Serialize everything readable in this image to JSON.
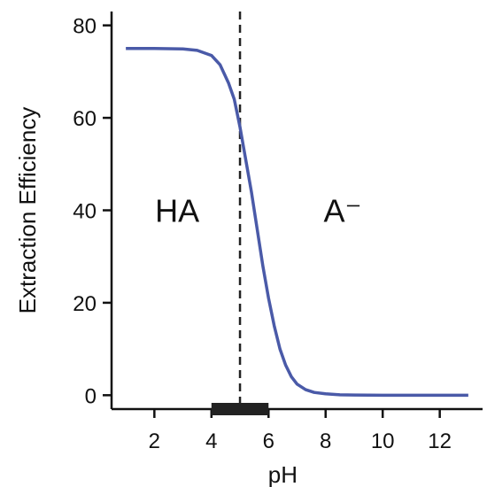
{
  "chart_data": {
    "type": "line",
    "title": "",
    "xlabel": "pH",
    "ylabel": "Extraction Efficiency",
    "xlim": [
      0.5,
      13.5
    ],
    "ylim": [
      -3,
      83
    ],
    "x_ticks": [
      2,
      4,
      6,
      8,
      10,
      12
    ],
    "y_ticks": [
      0,
      20,
      40,
      60,
      80
    ],
    "grid": false,
    "series": [
      {
        "color": "#4a5aa8",
        "x": [
          1,
          2,
          3,
          3.5,
          4,
          4.3,
          4.6,
          4.8,
          5,
          5.2,
          5.4,
          5.6,
          5.8,
          6,
          6.2,
          6.4,
          6.6,
          6.8,
          7,
          7.3,
          7.6,
          8,
          8.5,
          9,
          10,
          11,
          12,
          13
        ],
        "y": [
          75,
          75,
          74.9,
          74.6,
          73.5,
          71.5,
          67.5,
          64,
          58,
          51,
          44,
          36,
          28,
          21,
          15,
          10,
          6.5,
          4,
          2.4,
          1.2,
          0.6,
          0.3,
          0.1,
          0.05,
          0,
          0,
          0,
          0
        ]
      }
    ],
    "reference_line": {
      "x": 5,
      "style": "dashed",
      "color": "#222222"
    },
    "highlight_range": {
      "x_start": 4,
      "x_end": 6,
      "color": "#222222"
    },
    "annotations": [
      {
        "text": "HA",
        "x": 2.8,
        "y": 40
      },
      {
        "text": "A⁻",
        "x": 8.6,
        "y": 40
      }
    ]
  }
}
